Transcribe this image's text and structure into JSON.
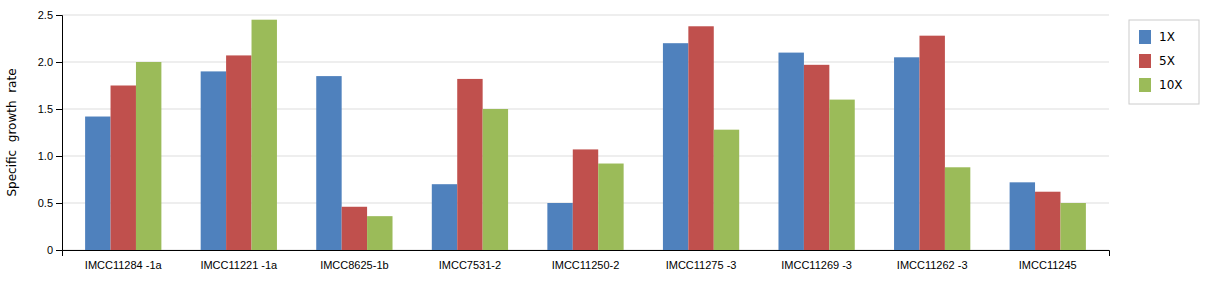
{
  "chart_data": {
    "type": "bar",
    "categories": [
      "IMCC11284 -1a",
      "IMCC11221 -1a",
      "IMCC8625-1b",
      "IMCC7531-2",
      "IMCC11250-2",
      "IMCC11275 -3",
      "IMCC11269 -3",
      "IMCC11262 -3",
      "IMCC11245"
    ],
    "series": [
      {
        "name": "1X",
        "color": "#4F81BD",
        "values": [
          1.42,
          1.9,
          1.85,
          0.7,
          0.5,
          2.2,
          2.1,
          2.05,
          0.72
        ]
      },
      {
        "name": "5X",
        "color": "#C0504D",
        "values": [
          1.75,
          2.07,
          0.46,
          1.82,
          1.07,
          2.38,
          1.97,
          2.28,
          0.62
        ]
      },
      {
        "name": "10X",
        "color": "#9BBB59",
        "values": [
          2.0,
          2.45,
          0.36,
          1.5,
          0.92,
          1.28,
          1.6,
          0.88,
          0.5
        ]
      }
    ],
    "ylabel": "Specific  growth  rate",
    "ylim": [
      0,
      2.5
    ],
    "yticks": [
      0,
      0.5,
      {
        "value": 1,
        "label": "1.0"
      },
      1.5,
      {
        "value": 2,
        "label": "2.0"
      },
      2.5
    ],
    "grid": true,
    "legend": "right"
  }
}
